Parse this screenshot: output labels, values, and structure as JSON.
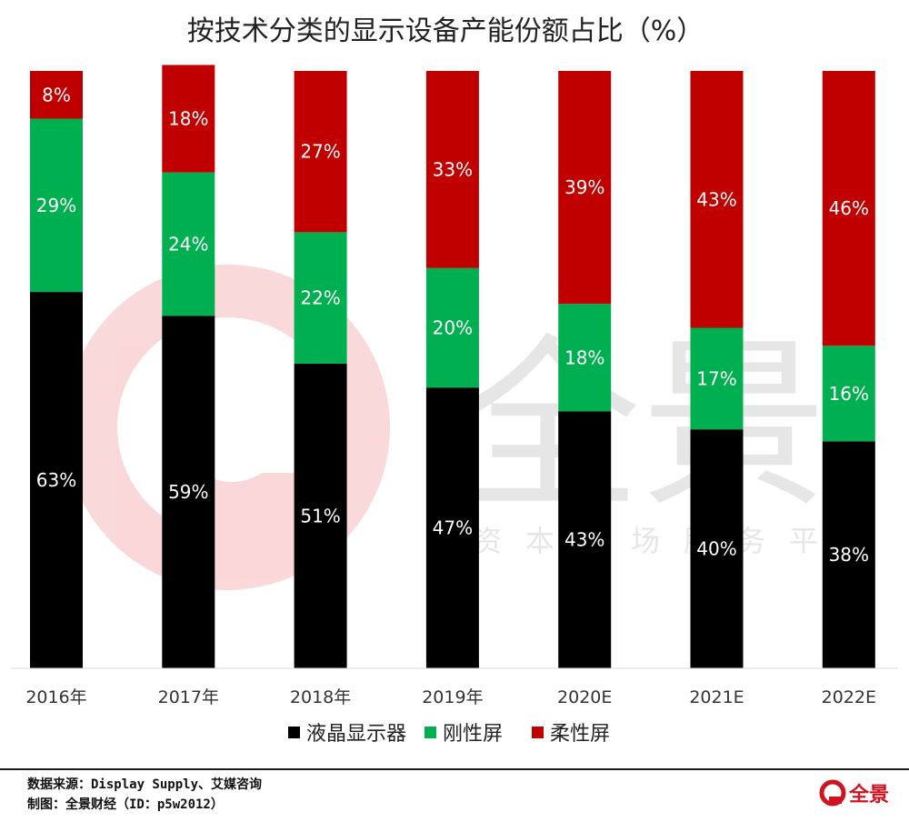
{
  "chart_data": {
    "type": "bar",
    "stacked": true,
    "title": "按技术分类的显示设备产能份额占比（%）",
    "categories": [
      "2016年",
      "2017年",
      "2018年",
      "2019年",
      "2020E",
      "2021E",
      "2022E"
    ],
    "series": [
      {
        "name": "液晶显示器",
        "color": "#000000",
        "values": [
          63,
          59,
          51,
          47,
          43,
          40,
          38
        ]
      },
      {
        "name": "刚性屏",
        "color": "#00b050",
        "values": [
          29,
          24,
          22,
          20,
          18,
          17,
          16
        ]
      },
      {
        "name": "柔性屏",
        "color": "#c00000",
        "values": [
          8,
          18,
          27,
          33,
          39,
          43,
          46
        ]
      }
    ],
    "value_suffix": "%",
    "ylim": [
      0,
      100
    ],
    "grid": false,
    "legend_position": "bottom"
  },
  "footer": {
    "source": "数据来源：Display  Supply、艾媒咨询",
    "credit": "制图：全景财经（ID：p5w2012）"
  },
  "watermark": {
    "brand": "全景",
    "slogan": "资本市场服务平台"
  },
  "logo": {
    "text": "全景"
  }
}
